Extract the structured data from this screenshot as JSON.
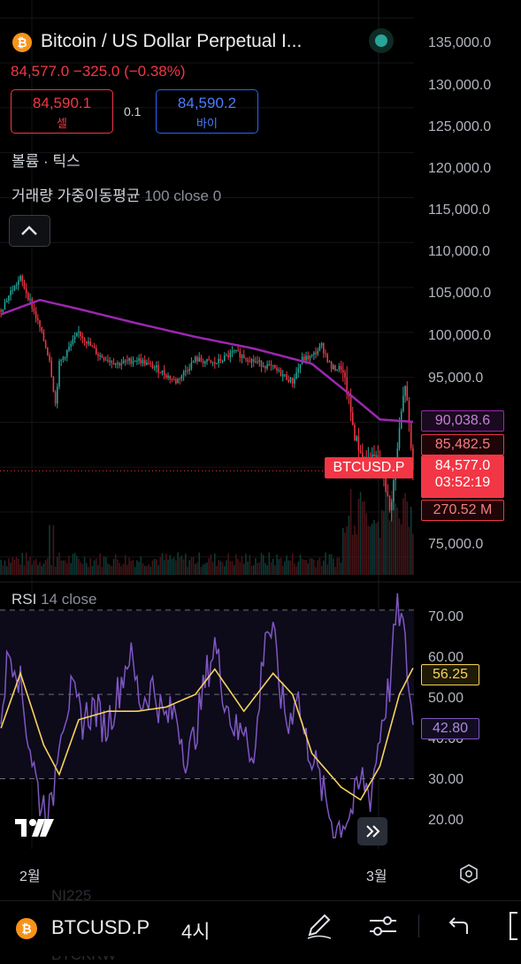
{
  "header": {
    "coin_icon": "bitcoin-icon",
    "title": "Bitcoin / US Dollar Perpetual I...",
    "price_change": "84,577.0  −325.0 (−0.38%)",
    "sell_price": "84,590.1",
    "sell_label": "셀",
    "spread": "0.1",
    "buy_price": "84,590.2",
    "buy_label": "바이",
    "live_icon": "live-status-dot-icon"
  },
  "indicators": {
    "volume_label": "볼륨 · 틱스",
    "vwma_name": "거래량 가중이동평균",
    "vwma_params": "100 close 0",
    "collapse_icon": "chevron-up-icon",
    "rsi_name": "RSI",
    "rsi_params": "14 close"
  },
  "price_axis": [
    "135,000.0",
    "130,000.0",
    "125,000.0",
    "120,000.0",
    "115,000.0",
    "110,000.0",
    "105,000.0",
    "100,000.0",
    "95,000.0",
    "75,000.0"
  ],
  "price_tags": {
    "vwma_value": "90,038.6",
    "high_value": "85,482.5",
    "symbol_tag": "BTCUSD.P",
    "last_price": "84,577.0",
    "countdown": "03:52:19",
    "volume_value": "270.52 M"
  },
  "rsi_axis": [
    "70.00",
    "60.00",
    "50.00",
    "40.00",
    "30.00",
    "20.00"
  ],
  "rsi_tags": {
    "ma_value": "56.25",
    "rsi_value": "42.80"
  },
  "time_axis": {
    "feb": "2월",
    "mar": "3월",
    "settings_icon": "hexagon-settings-icon"
  },
  "footer": {
    "symbol": "BTCUSD.P",
    "timeframe": "4시",
    "ghost_top": "NI225",
    "ghost_bottom": "BTCKRW",
    "draw_icon": "pen-draw-icon",
    "indicator_icon": "sliders-icon",
    "undo_icon": "undo-arrow-icon",
    "layout_icon": "bracket-layout-icon"
  },
  "colors": {
    "up": "#26a69a",
    "down": "#f23645",
    "vwma": "#9c27b0",
    "rsi": "#7e57c2",
    "rsi_ma": "#f7d25c",
    "sell": "#f23645",
    "buy": "#2962ff"
  },
  "chart_data": {
    "type": "candlestick",
    "interval": "4시",
    "y_range": [
      73000,
      137000
    ],
    "x_labels": [
      "2월",
      "3월"
    ],
    "price_waypoints": [
      [
        0,
        102500
      ],
      [
        5,
        104500
      ],
      [
        10,
        106000
      ],
      [
        15,
        103500
      ],
      [
        20,
        100500
      ],
      [
        25,
        97000
      ],
      [
        28,
        92000
      ],
      [
        30,
        96500
      ],
      [
        40,
        100000
      ],
      [
        50,
        97500
      ],
      [
        60,
        96500
      ],
      [
        70,
        97000
      ],
      [
        80,
        96000
      ],
      [
        90,
        94500
      ],
      [
        100,
        97000
      ],
      [
        110,
        96500
      ],
      [
        120,
        97800
      ],
      [
        130,
        96800
      ],
      [
        140,
        96000
      ],
      [
        150,
        94500
      ],
      [
        155,
        97000
      ],
      [
        160,
        97300
      ],
      [
        165,
        98500
      ],
      [
        170,
        96000
      ],
      [
        175,
        96000
      ],
      [
        178,
        93500
      ],
      [
        182,
        88500
      ],
      [
        186,
        86000
      ],
      [
        190,
        85700
      ],
      [
        194,
        86000
      ],
      [
        197,
        84000
      ],
      [
        200,
        80000
      ],
      [
        203,
        85000
      ],
      [
        206,
        91000
      ],
      [
        208,
        94300
      ],
      [
        212,
        84577
      ]
    ],
    "vwma_waypoints": [
      [
        0,
        102000
      ],
      [
        20,
        103600
      ],
      [
        40,
        102600
      ],
      [
        70,
        101000
      ],
      [
        100,
        99500
      ],
      [
        130,
        98200
      ],
      [
        160,
        96500
      ],
      [
        180,
        93000
      ],
      [
        195,
        90300
      ],
      [
        212,
        90038
      ]
    ],
    "volume_range": [
      0,
      600
    ],
    "rsi_range": [
      15,
      75
    ],
    "rsi_levels": [
      70,
      50,
      30
    ],
    "rsi_waypoints": [
      [
        0,
        46
      ],
      [
        4,
        60
      ],
      [
        8,
        58
      ],
      [
        14,
        40
      ],
      [
        20,
        25
      ],
      [
        26,
        22
      ],
      [
        30,
        42
      ],
      [
        36,
        50
      ],
      [
        42,
        44
      ],
      [
        48,
        47
      ],
      [
        54,
        42
      ],
      [
        60,
        50
      ],
      [
        66,
        60
      ],
      [
        72,
        48
      ],
      [
        78,
        52
      ],
      [
        84,
        44
      ],
      [
        90,
        46
      ],
      [
        96,
        34
      ],
      [
        100,
        41
      ],
      [
        106,
        55
      ],
      [
        110,
        62
      ],
      [
        114,
        52
      ],
      [
        118,
        45
      ],
      [
        122,
        40
      ],
      [
        126,
        44
      ],
      [
        130,
        32
      ],
      [
        136,
        66
      ],
      [
        140,
        64
      ],
      [
        144,
        50
      ],
      [
        148,
        42
      ],
      [
        152,
        52
      ],
      [
        156,
        40
      ],
      [
        160,
        36
      ],
      [
        166,
        26
      ],
      [
        172,
        18
      ],
      [
        176,
        20
      ],
      [
        180,
        22
      ],
      [
        186,
        30
      ],
      [
        190,
        26
      ],
      [
        196,
        44
      ],
      [
        200,
        52
      ],
      [
        204,
        72
      ],
      [
        207,
        65
      ],
      [
        212,
        42.8
      ]
    ],
    "rsi_ma_waypoints": [
      [
        0,
        42
      ],
      [
        10,
        55
      ],
      [
        22,
        38
      ],
      [
        30,
        31
      ],
      [
        40,
        44
      ],
      [
        55,
        46
      ],
      [
        70,
        46
      ],
      [
        85,
        47
      ],
      [
        100,
        50
      ],
      [
        110,
        56
      ],
      [
        125,
        46
      ],
      [
        140,
        55
      ],
      [
        150,
        50
      ],
      [
        160,
        36
      ],
      [
        175,
        28
      ],
      [
        185,
        25
      ],
      [
        195,
        33
      ],
      [
        205,
        50
      ],
      [
        212,
        56.25
      ]
    ]
  }
}
